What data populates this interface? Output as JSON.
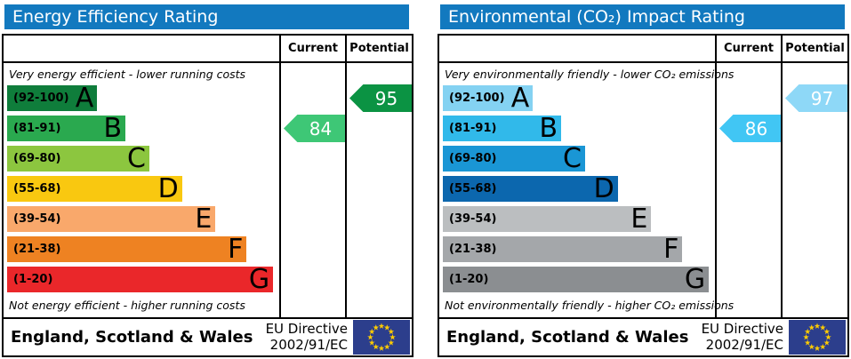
{
  "panels": [
    {
      "title": "Energy Efficiency Rating",
      "columns": {
        "current": "Current",
        "potential": "Potential"
      },
      "top_note": "Very energy efficient - lower running costs",
      "bottom_note": "Not energy efficient - higher running costs",
      "bands": [
        {
          "grade": "A",
          "range": "(92-100)",
          "color": "#0f7d3b",
          "width_pct": 33.3
        },
        {
          "grade": "B",
          "range": "(81-91)",
          "color": "#2aa94f",
          "width_pct": 43.8
        },
        {
          "grade": "C",
          "range": "(69-80)",
          "color": "#8cc63f",
          "width_pct": 52.6
        },
        {
          "grade": "D",
          "range": "(55-68)",
          "color": "#f9c810",
          "width_pct": 64.7
        },
        {
          "grade": "E",
          "range": "(39-54)",
          "color": "#f9a86b",
          "width_pct": 77.1
        },
        {
          "grade": "F",
          "range": "(21-38)",
          "color": "#ee8222",
          "width_pct": 88.6
        },
        {
          "grade": "G",
          "range": "(1-20)",
          "color": "#ea272a",
          "width_pct": 98.4
        }
      ],
      "current": {
        "value": "84",
        "grade": "B",
        "color": "#3ec776"
      },
      "potential": {
        "value": "95",
        "grade": "A",
        "color": "#0b9343"
      },
      "footer": {
        "region": "England, Scotland & Wales",
        "directive_line1": "EU Directive",
        "directive_line2": "2002/91/EC",
        "flag_blue": "#2c3e8c",
        "flag_star_color": "#ffcc00"
      }
    },
    {
      "title": "Environmental (CO₂) Impact Rating",
      "columns": {
        "current": "Current",
        "potential": "Potential"
      },
      "top_note": "Very environmentally friendly - lower CO₂ emissions",
      "bottom_note": "Not environmentally friendly - higher CO₂ emissions",
      "bands": [
        {
          "grade": "A",
          "range": "(92-100)",
          "color": "#84d2f2",
          "width_pct": 33.3
        },
        {
          "grade": "B",
          "range": "(81-91)",
          "color": "#31b9ea",
          "width_pct": 43.8
        },
        {
          "grade": "C",
          "range": "(69-80)",
          "color": "#1a96d5",
          "width_pct": 52.6
        },
        {
          "grade": "D",
          "range": "(55-68)",
          "color": "#0c67ae",
          "width_pct": 64.7
        },
        {
          "grade": "E",
          "range": "(39-54)",
          "color": "#bbbec0",
          "width_pct": 77.1
        },
        {
          "grade": "F",
          "range": "(21-38)",
          "color": "#a4a7aa",
          "width_pct": 88.6
        },
        {
          "grade": "G",
          "range": "(1-20)",
          "color": "#8b8e91",
          "width_pct": 98.4
        }
      ],
      "current": {
        "value": "86",
        "grade": "B",
        "color": "#41c6f4"
      },
      "potential": {
        "value": "97",
        "grade": "A",
        "color": "#8ed8f7"
      },
      "footer": {
        "region": "England, Scotland & Wales",
        "directive_line1": "EU Directive",
        "directive_line2": "2002/91/EC",
        "flag_blue": "#2c3e8c",
        "flag_star_color": "#ffcc00"
      }
    }
  ],
  "chart_data": [
    {
      "type": "bar",
      "title": "Energy Efficiency Rating",
      "categories": [
        "A",
        "B",
        "C",
        "D",
        "E",
        "F",
        "G"
      ],
      "band_ranges": [
        "92-100",
        "81-91",
        "69-80",
        "55-68",
        "39-54",
        "21-38",
        "1-20"
      ],
      "values_note": "bar lengths increase from A to G (EPC standard layout)",
      "current": 84,
      "current_band": "B",
      "potential": 95,
      "potential_band": "A",
      "annotations": [
        "Very energy efficient - lower running costs",
        "Not energy efficient - higher running costs",
        "England, Scotland & Wales",
        "EU Directive 2002/91/EC"
      ],
      "legend_position": "columns right: Current, Potential",
      "grid": false
    },
    {
      "type": "bar",
      "title": "Environmental (CO₂) Impact Rating",
      "categories": [
        "A",
        "B",
        "C",
        "D",
        "E",
        "F",
        "G"
      ],
      "band_ranges": [
        "92-100",
        "81-91",
        "69-80",
        "55-68",
        "39-54",
        "21-38",
        "1-20"
      ],
      "values_note": "bar lengths increase from A to G (EPC standard layout)",
      "current": 86,
      "current_band": "B",
      "potential": 97,
      "potential_band": "A",
      "annotations": [
        "Very environmentally friendly - lower CO₂ emissions",
        "Not environmentally friendly - higher CO₂ emissions",
        "England, Scotland & Wales",
        "EU Directive 2002/91/EC"
      ],
      "legend_position": "columns right: Current, Potential",
      "grid": false
    }
  ]
}
